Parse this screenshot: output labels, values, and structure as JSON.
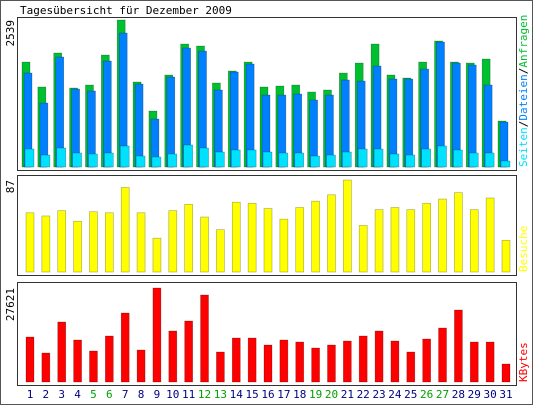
{
  "chart_data": [
    {
      "type": "bar",
      "title": "Tagesübersicht für Dezember 2009",
      "ylim": [
        0,
        2539
      ],
      "yticks": [
        2539
      ],
      "separator": "/",
      "series": [
        {
          "name": "Anfragen",
          "color": "#00c030",
          "values": [
            1813,
            1382,
            1969,
            1364,
            1416,
            1934,
            2539,
            1468,
            967,
            1589,
            2124,
            2090,
            1451,
            1658,
            1813,
            1382,
            1399,
            1416,
            1295,
            1330,
            1623,
            1796,
            2124,
            1589,
            1537,
            1813,
            2176,
            1813,
            1796,
            1865,
            794
          ]
        },
        {
          "name": "Dateien",
          "color": "#0080ff",
          "values": [
            1623,
            1105,
            1900,
            1347,
            1313,
            1831,
            2314,
            1433,
            829,
            1554,
            2055,
            2003,
            1330,
            1641,
            1779,
            1243,
            1243,
            1261,
            1157,
            1243,
            1502,
            1485,
            1744,
            1520,
            1520,
            1692,
            2159,
            1796,
            1762,
            1416,
            777
          ]
        },
        {
          "name": "Seiten",
          "color": "#00e0ff",
          "values": [
            311,
            207,
            328,
            242,
            225,
            242,
            363,
            190,
            173,
            225,
            380,
            328,
            259,
            294,
            294,
            259,
            242,
            242,
            190,
            207,
            259,
            311,
            311,
            225,
            207,
            311,
            363,
            294,
            242,
            242,
            104
          ]
        }
      ]
    },
    {
      "type": "bar",
      "ylim": [
        0,
        87
      ],
      "yticks": [
        87
      ],
      "series": [
        {
          "name": "Besuche",
          "color": "#ffff00",
          "values": [
            56,
            53,
            58,
            48,
            57,
            56,
            80,
            56,
            32,
            58,
            64,
            52,
            40,
            66,
            65,
            60,
            50,
            61,
            67,
            73,
            87,
            44,
            59,
            61,
            59,
            65,
            69,
            75,
            59,
            70,
            30
          ]
        }
      ]
    },
    {
      "type": "bar",
      "ylim": [
        0,
        27621
      ],
      "yticks": [
        27621
      ],
      "categories": [
        "1",
        "2",
        "3",
        "4",
        "5",
        "6",
        "7",
        "8",
        "9",
        "10",
        "11",
        "12",
        "13",
        "14",
        "15",
        "16",
        "17",
        "18",
        "19",
        "20",
        "21",
        "22",
        "23",
        "24",
        "25",
        "26",
        "27",
        "28",
        "29",
        "30",
        "31"
      ],
      "category_colors": [
        "#000080",
        "#000080",
        "#000080",
        "#000080",
        "#00a000",
        "#00a000",
        "#000080",
        "#000080",
        "#000080",
        "#000080",
        "#000080",
        "#00a000",
        "#00a000",
        "#000080",
        "#000080",
        "#000080",
        "#000080",
        "#000080",
        "#00a000",
        "#00a000",
        "#000080",
        "#000080",
        "#000080",
        "#000080",
        "#000080",
        "#00a000",
        "#00a000",
        "#000080",
        "#000080",
        "#000080",
        "#000080"
      ],
      "series": [
        {
          "name": "KBytes",
          "color": "#ff0000",
          "values": [
            13222,
            8521,
            17629,
            12341,
            9109,
            13517,
            20275,
            9403,
            27621,
            14986,
            17924,
            25564,
            8815,
            12929,
            12929,
            10872,
            12341,
            11753,
            9991,
            10872,
            12047,
            13517,
            14986,
            12047,
            8815,
            12635,
            15868,
            21157,
            11753,
            11753,
            5289
          ]
        }
      ]
    }
  ]
}
